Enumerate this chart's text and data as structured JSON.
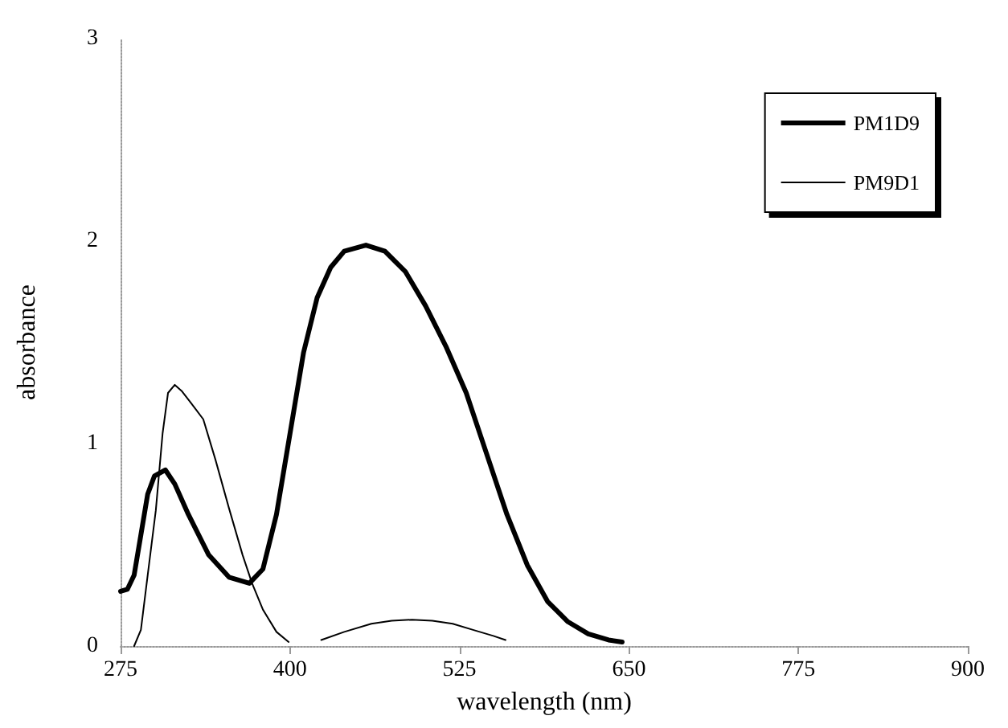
{
  "chart_data": {
    "type": "line",
    "xlabel": "wavelength (nm)",
    "ylabel": "absorbance",
    "xlim": [
      275,
      900
    ],
    "xticks": [
      275,
      400,
      525,
      650,
      775,
      900
    ],
    "ylim": [
      0,
      3
    ],
    "yticks": [
      0,
      1,
      2,
      3
    ],
    "grid": false,
    "legend": "top right",
    "marker": "none",
    "line_style": "solid",
    "series": [
      {
        "name": "PM1D9",
        "color": "#000000",
        "x": [
          275,
          280,
          285,
          290,
          295,
          300,
          308,
          315,
          325,
          340,
          355,
          370,
          380,
          390,
          400,
          410,
          420,
          430,
          440,
          456,
          470,
          485,
          500,
          515,
          530,
          545,
          560,
          575,
          590,
          605,
          620,
          635,
          645
        ],
        "values": [
          0.27,
          0.28,
          0.35,
          0.55,
          0.75,
          0.84,
          0.87,
          0.8,
          0.65,
          0.45,
          0.34,
          0.31,
          0.38,
          0.65,
          1.05,
          1.45,
          1.72,
          1.87,
          1.95,
          1.98,
          1.95,
          1.85,
          1.68,
          1.48,
          1.25,
          0.95,
          0.65,
          0.4,
          0.22,
          0.12,
          0.06,
          0.03,
          0.02
        ]
      },
      {
        "name": "PM9D1",
        "color": "#000000",
        "x": [
          285,
          290,
          295,
          301,
          306,
          310,
          315,
          320,
          327,
          336,
          345,
          355,
          365,
          372,
          380,
          390,
          399,
          411,
          423,
          440,
          460,
          475,
          490,
          505,
          520,
          535,
          550,
          559
        ],
        "values": [
          0,
          0.08,
          0.35,
          0.67,
          1.05,
          1.25,
          1.29,
          1.26,
          1.2,
          1.12,
          0.92,
          0.68,
          0.45,
          0.31,
          0.18,
          0.07,
          0.02,
          null,
          0.03,
          0.07,
          0.11,
          0.125,
          0.13,
          0.125,
          0.11,
          0.08,
          0.05,
          0.03
        ]
      }
    ]
  }
}
